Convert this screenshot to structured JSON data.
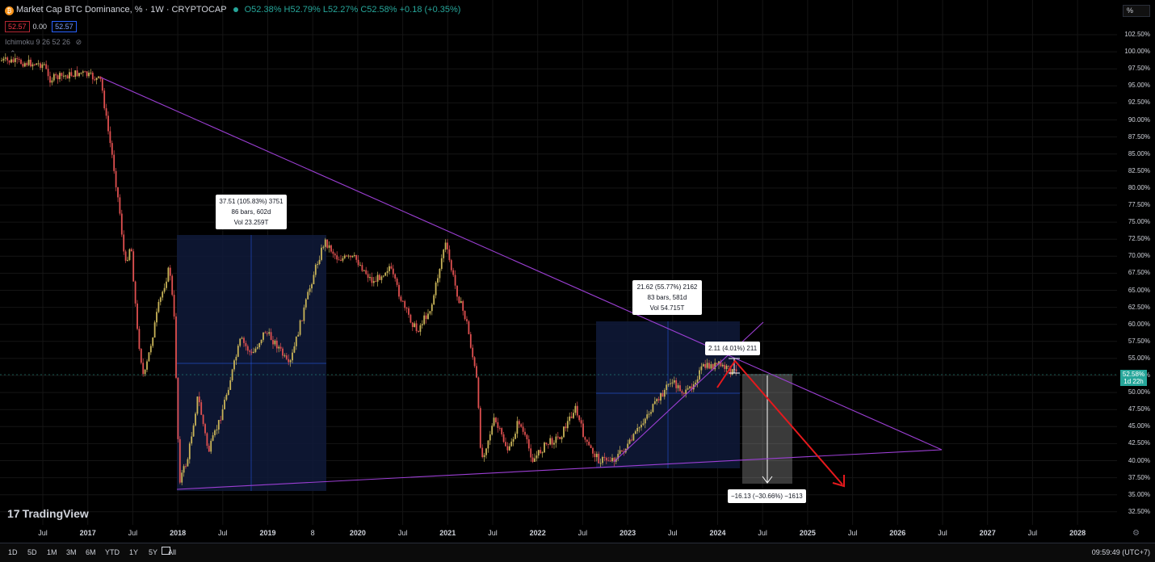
{
  "header": {
    "symbol_title": "Market Cap BTC Dominance, % · 1W · CRYPTOCAP",
    "ohlc": "O52.38% H52.79% L52.27% C52.58% +0.18 (+0.35%)",
    "badge_bid": "52.57",
    "badge_spread": "0.00",
    "badge_ask": "52.57",
    "indicator": "Ichimoku 9 26 52 26"
  },
  "price_axis": {
    "mode_button": "%",
    "labels": [
      "102.50%",
      "100.00%",
      "97.50%",
      "95.00%",
      "92.50%",
      "90.00%",
      "87.50%",
      "85.00%",
      "82.50%",
      "80.00%",
      "77.50%",
      "75.00%",
      "72.50%",
      "70.00%",
      "67.50%",
      "65.00%",
      "62.50%",
      "60.00%",
      "57.50%",
      "55.00%",
      "52.50%",
      "50.00%",
      "47.50%",
      "45.00%",
      "42.50%",
      "40.00%",
      "37.50%",
      "35.00%",
      "32.50%"
    ],
    "current_price": "52.58%",
    "countdown": "1d 22h"
  },
  "time_axis": {
    "labels": [
      "Jul",
      "2017",
      "Jul",
      "2018",
      "Jul",
      "2019",
      "8",
      "2020",
      "Jul",
      "2021",
      "Jul",
      "2022",
      "Jul",
      "2023",
      "Jul",
      "2024",
      "Jul",
      "2025",
      "Jul",
      "2026",
      "Jul",
      "2027",
      "Jul",
      "2028"
    ]
  },
  "measurements": {
    "m1": {
      "line1": "37.51 (105.83%) 3751",
      "line2": "86 bars, 602d",
      "line3": "Vol 23.259T"
    },
    "m2": {
      "line1": "21.62 (55.77%) 2162",
      "line2": "83 bars, 581d",
      "line3": "Vol 54.715T"
    },
    "m3": {
      "line1": "2.11 (4.01%) 211"
    },
    "m4": {
      "line1": "−16.13 (−30.66%) −1613"
    }
  },
  "branding": {
    "logo": "TradingView",
    "logo_mark": "17"
  },
  "bottom_bar": {
    "timeframes": [
      "1D",
      "5D",
      "1M",
      "3M",
      "6M",
      "YTD",
      "1Y",
      "5Y",
      "All"
    ],
    "clock": "09:59:49 (UTC+7)"
  },
  "colors": {
    "up": "#26a69a",
    "down": "#ef5350",
    "candle_up": "#c9b458",
    "trendline": "#9c3fd4",
    "arrow": "#e5191d",
    "box": "#0f1a3a"
  }
}
